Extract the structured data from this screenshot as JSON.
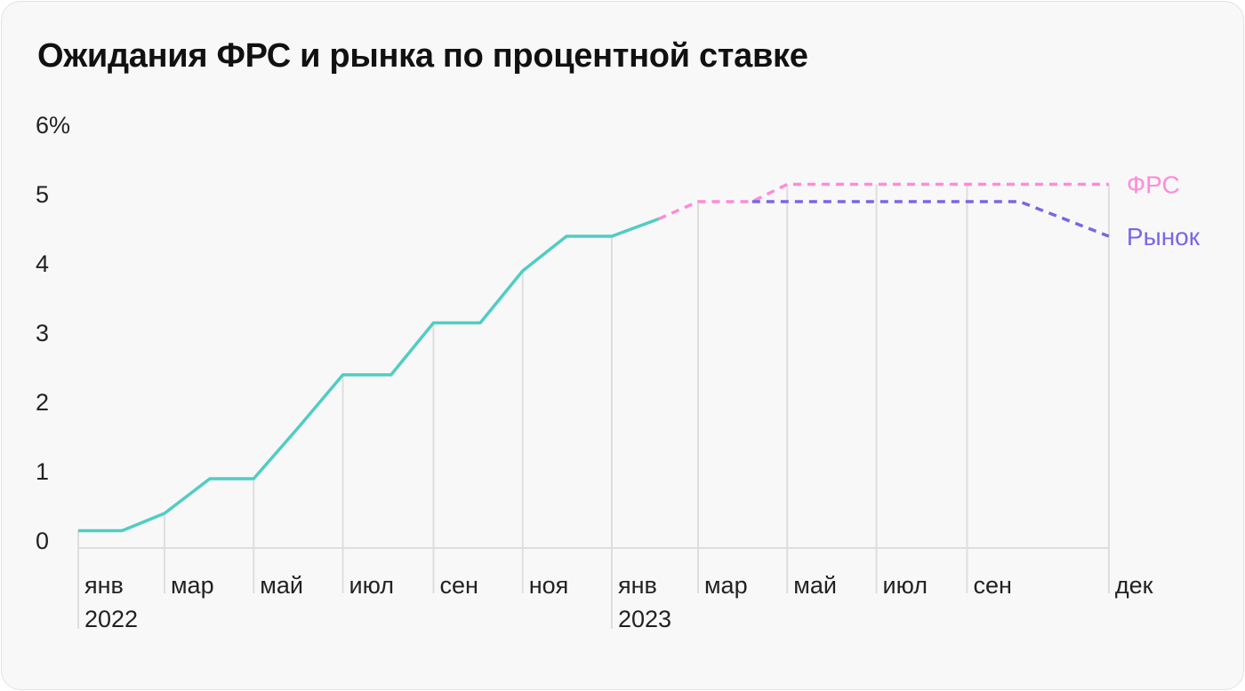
{
  "chart_data": {
    "type": "line",
    "title": "Ожидания ФРС и рынка по процентной ставке",
    "ylim": [
      0,
      6
    ],
    "y_ticks": [
      "0",
      "1",
      "2",
      "3",
      "4",
      "5",
      "6%"
    ],
    "x_ticks": [
      {
        "date": "2022-01-01",
        "label": "янв",
        "year": "2022"
      },
      {
        "date": "2022-03-01",
        "label": "мар"
      },
      {
        "date": "2022-05-01",
        "label": "май"
      },
      {
        "date": "2022-07-01",
        "label": "июл"
      },
      {
        "date": "2022-09-01",
        "label": "сен"
      },
      {
        "date": "2022-11-01",
        "label": "ноя"
      },
      {
        "date": "2023-01-01",
        "label": "янв",
        "year": "2023"
      },
      {
        "date": "2023-03-01",
        "label": "мар"
      },
      {
        "date": "2023-05-01",
        "label": "май"
      },
      {
        "date": "2023-07-01",
        "label": "июл"
      },
      {
        "date": "2023-09-01",
        "label": "сен"
      },
      {
        "date": "2023-12-07",
        "label": "дек"
      }
    ],
    "grid": "vertical",
    "series": [
      {
        "key": "actual",
        "color": "#4fcdc3",
        "dashed": false,
        "x": [
          "2022-01-01",
          "2022-01-31",
          "2022-03-01",
          "2022-04-01",
          "2022-05-01",
          "2022-06-01",
          "2022-07-01",
          "2022-08-03",
          "2022-09-01",
          "2022-10-03",
          "2022-11-01",
          "2022-12-01",
          "2023-01-01",
          "2023-02-02"
        ],
        "y": [
          0.25,
          0.25,
          0.5,
          1.0,
          1.0,
          1.75,
          2.5,
          2.5,
          3.25,
          3.25,
          4.0,
          4.5,
          4.5,
          4.75
        ]
      },
      {
        "key": "fed",
        "name": "ФРС",
        "color": "#ff8bd9",
        "dashed": true,
        "x": [
          "2023-02-02",
          "2023-03-01",
          "2023-04-07",
          "2023-05-01",
          "2023-12-07"
        ],
        "y": [
          4.75,
          5.0,
          5.0,
          5.25,
          5.25
        ]
      },
      {
        "key": "market",
        "name": "Рынок",
        "color": "#7a66e6",
        "dashed": true,
        "x": [
          "2023-04-07",
          "2023-10-07",
          "2023-12-07"
        ],
        "y": [
          5.0,
          5.0,
          4.5
        ]
      }
    ],
    "legend": "right-end labels"
  }
}
